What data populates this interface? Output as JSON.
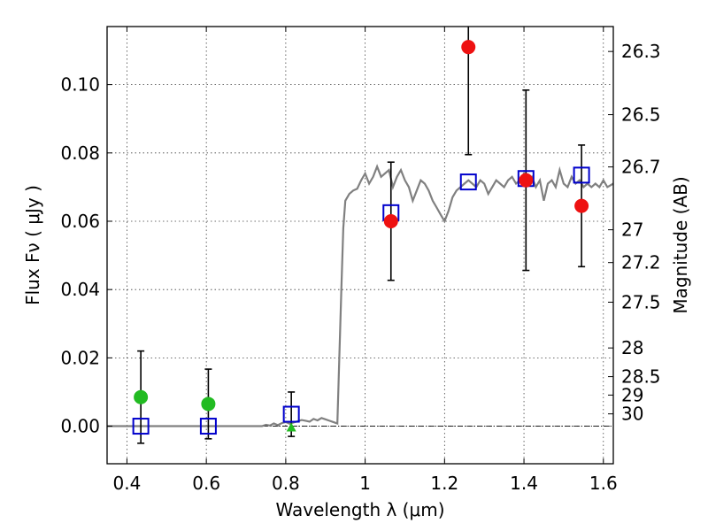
{
  "chart_data": {
    "type": "scatter",
    "title": "",
    "xlabel": "Wavelength  λ (μm)",
    "ylabel_left": "Flux  Fν  ( μJy )",
    "ylabel_right": "Magnitude (AB)",
    "xlim": [
      0.35,
      1.625
    ],
    "ylim": [
      -0.011,
      0.117
    ],
    "x_ticks": [
      0.4,
      0.6,
      0.8,
      1.0,
      1.2,
      1.4,
      1.6
    ],
    "x_tick_labels": [
      "0.4",
      "0.6",
      "0.8",
      "1",
      "1.2",
      "1.4",
      "1.6"
    ],
    "y_ticks": [
      0.0,
      0.02,
      0.04,
      0.06,
      0.08,
      0.1
    ],
    "y_tick_labels": [
      "0.00",
      "0.02",
      "0.04",
      "0.06",
      "0.08",
      "0.10"
    ],
    "right_axis_ticks": [
      {
        "label": "26.3",
        "flux": 0.1097
      },
      {
        "label": "26.5",
        "flux": 0.0912
      },
      {
        "label": "26.7",
        "flux": 0.0759
      },
      {
        "label": "27",
        "flux": 0.0575
      },
      {
        "label": "27.2",
        "flux": 0.0479
      },
      {
        "label": "27.5",
        "flux": 0.0363
      },
      {
        "label": "28",
        "flux": 0.0229
      },
      {
        "label": "28.5",
        "flux": 0.0145
      },
      {
        "label": "29",
        "flux": 0.0091
      },
      {
        "label": "30",
        "flux": 0.0036
      }
    ],
    "grid": true,
    "colors": {
      "model_sed": "#808080",
      "model_band": "#0000cc",
      "observed_optical": "#22bb22",
      "observed_nir": "#ee1111",
      "error_bar": "#000000",
      "zero_line": "#000000"
    },
    "series": [
      {
        "kind": "line",
        "points": [
          [
            0.35,
            0.0
          ],
          [
            0.74,
            0.0
          ],
          [
            0.75,
            0.0004
          ],
          [
            0.76,
            0.0002
          ],
          [
            0.77,
            0.0008
          ],
          [
            0.78,
            0.0003
          ],
          [
            0.79,
            0.0009
          ],
          [
            0.8,
            0.0012
          ],
          [
            0.81,
            0.0007
          ],
          [
            0.82,
            0.0011
          ],
          [
            0.83,
            0.0014
          ],
          [
            0.84,
            0.0018
          ],
          [
            0.85,
            0.0016
          ],
          [
            0.86,
            0.0013
          ],
          [
            0.87,
            0.0021
          ],
          [
            0.88,
            0.0017
          ],
          [
            0.89,
            0.0024
          ],
          [
            0.9,
            0.002
          ],
          [
            0.91,
            0.0016
          ],
          [
            0.92,
            0.0012
          ],
          [
            0.93,
            0.0008
          ],
          [
            0.935,
            0.02
          ],
          [
            0.94,
            0.04
          ],
          [
            0.945,
            0.058
          ],
          [
            0.95,
            0.066
          ],
          [
            0.96,
            0.068
          ],
          [
            0.97,
            0.069
          ],
          [
            0.98,
            0.0695
          ],
          [
            0.99,
            0.072
          ],
          [
            1.0,
            0.074
          ],
          [
            1.01,
            0.071
          ],
          [
            1.02,
            0.073
          ],
          [
            1.03,
            0.076
          ],
          [
            1.04,
            0.073
          ],
          [
            1.05,
            0.074
          ],
          [
            1.06,
            0.075
          ],
          [
            1.07,
            0.07
          ],
          [
            1.08,
            0.073
          ],
          [
            1.09,
            0.075
          ],
          [
            1.1,
            0.072
          ],
          [
            1.11,
            0.07
          ],
          [
            1.12,
            0.066
          ],
          [
            1.13,
            0.069
          ],
          [
            1.14,
            0.072
          ],
          [
            1.15,
            0.071
          ],
          [
            1.16,
            0.069
          ],
          [
            1.17,
            0.066
          ],
          [
            1.18,
            0.064
          ],
          [
            1.19,
            0.062
          ],
          [
            1.2,
            0.06
          ],
          [
            1.21,
            0.063
          ],
          [
            1.22,
            0.067
          ],
          [
            1.23,
            0.069
          ],
          [
            1.24,
            0.07
          ],
          [
            1.25,
            0.071
          ],
          [
            1.26,
            0.072
          ],
          [
            1.27,
            0.071
          ],
          [
            1.28,
            0.07
          ],
          [
            1.29,
            0.072
          ],
          [
            1.3,
            0.071
          ],
          [
            1.31,
            0.068
          ],
          [
            1.32,
            0.07
          ],
          [
            1.33,
            0.072
          ],
          [
            1.34,
            0.071
          ],
          [
            1.35,
            0.07
          ],
          [
            1.36,
            0.072
          ],
          [
            1.37,
            0.073
          ],
          [
            1.38,
            0.071
          ],
          [
            1.39,
            0.072
          ],
          [
            1.4,
            0.074
          ],
          [
            1.41,
            0.072
          ],
          [
            1.42,
            0.073
          ],
          [
            1.43,
            0.07
          ],
          [
            1.44,
            0.072
          ],
          [
            1.45,
            0.066
          ],
          [
            1.46,
            0.071
          ],
          [
            1.47,
            0.072
          ],
          [
            1.48,
            0.07
          ],
          [
            1.49,
            0.075
          ],
          [
            1.5,
            0.071
          ],
          [
            1.51,
            0.07
          ],
          [
            1.52,
            0.073
          ],
          [
            1.53,
            0.071
          ],
          [
            1.54,
            0.072
          ],
          [
            1.55,
            0.07
          ],
          [
            1.56,
            0.071
          ],
          [
            1.57,
            0.07
          ],
          [
            1.58,
            0.071
          ],
          [
            1.59,
            0.07
          ],
          [
            1.6,
            0.072
          ],
          [
            1.61,
            0.07
          ],
          [
            1.625,
            0.071
          ]
        ]
      },
      {
        "kind": "open-square",
        "points": [
          [
            0.435,
            0.0
          ],
          [
            0.605,
            0.0
          ],
          [
            0.814,
            0.0035
          ],
          [
            1.065,
            0.0625
          ],
          [
            1.26,
            0.0715
          ],
          [
            1.405,
            0.0725
          ],
          [
            1.545,
            0.0735
          ]
        ]
      },
      {
        "kind": "filled-circle",
        "color_key": "observed_optical",
        "points": [
          [
            0.435,
            0.0085,
            0.0135
          ],
          [
            0.605,
            0.0065,
            0.0102
          ]
        ]
      },
      {
        "kind": "filled-circle",
        "color_key": "observed_nir",
        "points": [
          [
            1.065,
            0.06,
            0.0173
          ],
          [
            1.26,
            0.111,
            0.0315
          ],
          [
            1.405,
            0.072,
            0.0264
          ],
          [
            1.545,
            0.0645,
            0.0178
          ]
        ]
      },
      {
        "kind": "triangle",
        "color_key": "observed_optical",
        "points": [
          [
            0.814,
            -0.0005
          ]
        ]
      },
      {
        "kind": "error-bar-only",
        "points": [
          [
            0.814,
            0.0035,
            0.0065
          ]
        ]
      }
    ]
  }
}
